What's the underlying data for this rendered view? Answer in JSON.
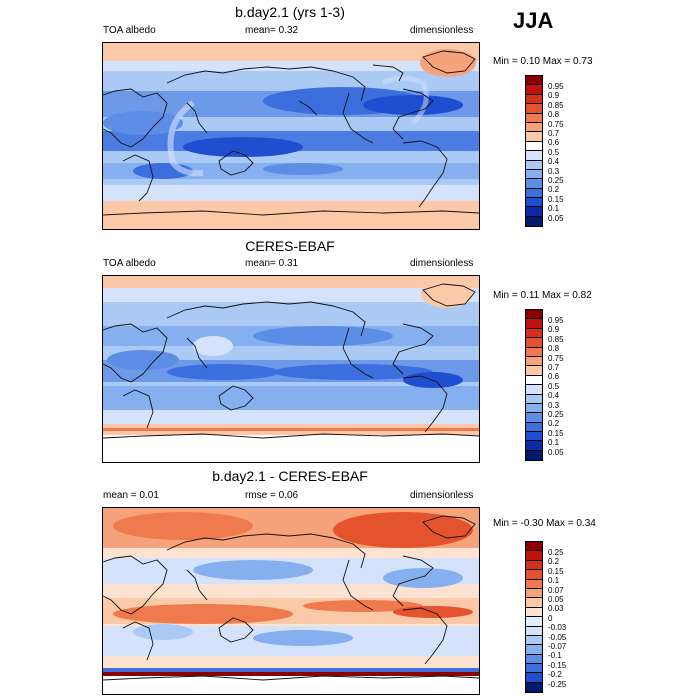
{
  "season_label": "JJA",
  "panels": [
    {
      "title": "b.day2.1 (yrs 1-3)",
      "left_label": "TOA albedo",
      "center_label": "mean=  0.32",
      "right_label": "dimensionless",
      "minmax": "Min =  0.10 Max =  0.73",
      "kind": "abs",
      "colorbar_ticks": [
        "0.95",
        "0.9",
        "0.85",
        "0.8",
        "0.75",
        "0.7",
        "0.6",
        "0.5",
        "0.4",
        "0.3",
        "0.25",
        "0.2",
        "0.15",
        "0.1",
        "0.05"
      ]
    },
    {
      "title": "CERES-EBAF",
      "left_label": "TOA albedo",
      "center_label": "mean=  0.31",
      "right_label": "dimensionless",
      "minmax": "Min =  0.11 Max =  0.82",
      "kind": "obs",
      "colorbar_ticks": [
        "0.95",
        "0.9",
        "0.85",
        "0.8",
        "0.75",
        "0.7",
        "0.6",
        "0.5",
        "0.4",
        "0.3",
        "0.25",
        "0.2",
        "0.15",
        "0.1",
        "0.05"
      ]
    },
    {
      "title": "b.day2.1 - CERES-EBAF",
      "left_label": "mean =  0.01",
      "center_label": "rmse =  0.06",
      "right_label": "dimensionless",
      "minmax": "Min = -0.30 Max =  0.34",
      "kind": "diff",
      "colorbar_ticks": [
        "0.25",
        "0.2",
        "0.15",
        "0.1",
        "0.07",
        "0.05",
        "0.03",
        "0",
        "-0.03",
        "-0.05",
        "-0.07",
        "-0.1",
        "-0.15",
        "-0.2",
        "-0.25"
      ]
    }
  ],
  "colors": {
    "abs_scale_top_to_bottom": [
      "#8b0000",
      "#c0120a",
      "#d6301c",
      "#e4522e",
      "#ee7a4e",
      "#f6a27a",
      "#fbc9a8",
      "#ffffff",
      "#d4e3fb",
      "#aac9f5",
      "#86aff0",
      "#5c8ee6",
      "#3c6ede",
      "#1f4fd0",
      "#0a2aa8",
      "#001a70"
    ],
    "diff_scale_top_to_bottom": [
      "#8b0000",
      "#c0120a",
      "#d6301c",
      "#e4522e",
      "#ee7a4e",
      "#f6a27a",
      "#fbc9a8",
      "#fde2d2",
      "#e6eefc",
      "#d4e3fb",
      "#aac9f5",
      "#86aff0",
      "#5c8ee6",
      "#3c6ede",
      "#1f4fd0",
      "#001a70"
    ],
    "coastline": "#111111"
  }
}
